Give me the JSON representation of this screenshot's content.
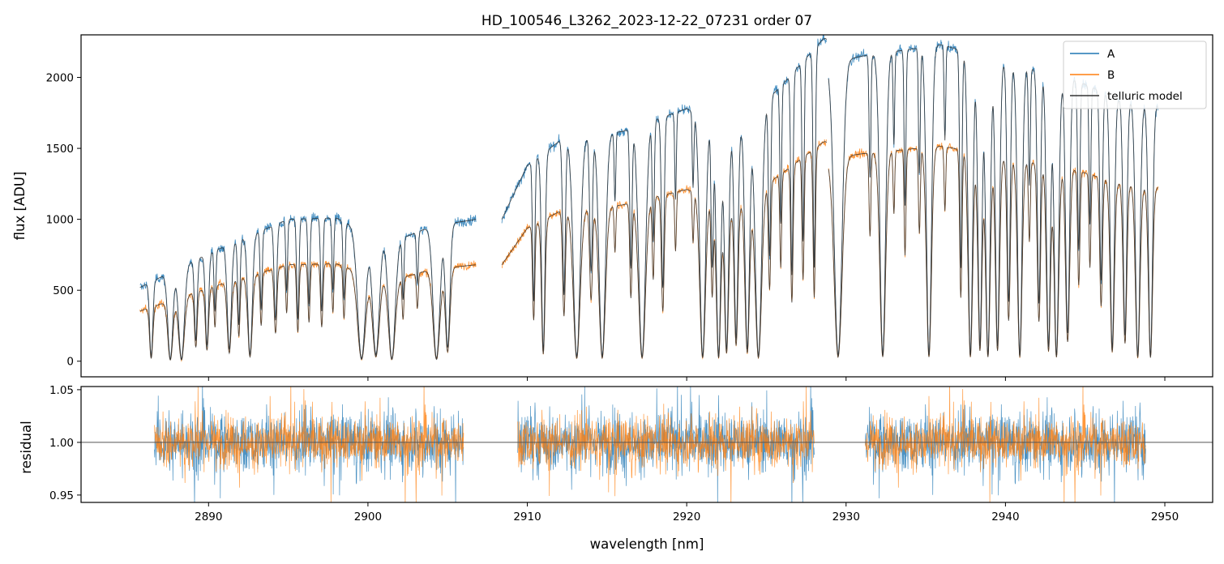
{
  "chart_data": [
    {
      "id": "spectrum",
      "type": "line",
      "title": "HD_100546_L3262_2023-12-22_07231  order 07",
      "xlabel": "",
      "ylabel": "flux [ADU]",
      "xlim": [
        2882,
        2953
      ],
      "ylim": [
        -110,
        2300
      ],
      "yticks": [
        0,
        500,
        1000,
        1500,
        2000
      ],
      "grid": false,
      "legend": "top-right",
      "segments": [
        [
          2885.7,
          2906.8
        ],
        [
          2908.4,
          2928.8
        ],
        [
          2928.9,
          2949.6
        ]
      ],
      "series": [
        {
          "name": "A",
          "color": "#1f77b4",
          "role": "data",
          "scale": 1.0
        },
        {
          "name": "B",
          "color": "#ff7f0e",
          "role": "data",
          "scale": 0.68
        },
        {
          "name": "telluric model",
          "color": "#333333",
          "role": "model"
        }
      ],
      "continuum_A": [
        [
          2885.7,
          520
        ],
        [
          2890,
          760
        ],
        [
          2895,
          1000
        ],
        [
          2898,
          1010
        ],
        [
          2900,
          900
        ],
        [
          2902,
          860
        ],
        [
          2904,
          950
        ],
        [
          2906.8,
          1000
        ],
        [
          2908.4,
          1000
        ],
        [
          2910,
          1380
        ],
        [
          2912,
          1550
        ],
        [
          2916,
          1620
        ],
        [
          2920,
          1780
        ],
        [
          2923,
          1600
        ],
        [
          2926,
          1950
        ],
        [
          2928.8,
          2300
        ],
        [
          2928.9,
          2100
        ],
        [
          2931,
          2150
        ],
        [
          2936,
          2230
        ],
        [
          2940,
          2100
        ],
        [
          2944,
          2000
        ],
        [
          2947,
          1850
        ],
        [
          2949.6,
          1800
        ]
      ],
      "absorption_lines": [
        [
          2886.4,
          0.95,
          0.14
        ],
        [
          2887.6,
          0.98,
          0.22
        ],
        [
          2888.3,
          0.98,
          0.25
        ],
        [
          2889.2,
          0.8,
          0.12
        ],
        [
          2889.9,
          0.85,
          0.14
        ],
        [
          2890.4,
          0.55,
          0.08
        ],
        [
          2891.3,
          0.9,
          0.18
        ],
        [
          2891.9,
          0.7,
          0.1
        ],
        [
          2892.6,
          0.95,
          0.2
        ],
        [
          2893.3,
          0.6,
          0.09
        ],
        [
          2894.2,
          0.7,
          0.12
        ],
        [
          2894.9,
          0.5,
          0.08
        ],
        [
          2895.6,
          0.7,
          0.1
        ],
        [
          2896.3,
          0.6,
          0.09
        ],
        [
          2897.1,
          0.65,
          0.1
        ],
        [
          2897.8,
          0.5,
          0.08
        ],
        [
          2898.5,
          0.55,
          0.09
        ],
        [
          2899.6,
          0.98,
          0.35
        ],
        [
          2900.5,
          0.95,
          0.3
        ],
        [
          2901.5,
          0.98,
          0.3
        ],
        [
          2902.2,
          0.5,
          0.08
        ],
        [
          2903.1,
          0.4,
          0.08
        ],
        [
          2904.3,
          0.98,
          0.3
        ],
        [
          2905.0,
          0.9,
          0.2
        ],
        [
          2910.4,
          0.7,
          0.1
        ],
        [
          2911.0,
          0.95,
          0.15
        ],
        [
          2912.3,
          0.7,
          0.12
        ],
        [
          2913.1,
          0.98,
          0.3
        ],
        [
          2914.0,
          0.6,
          0.12
        ],
        [
          2914.7,
          0.98,
          0.28
        ],
        [
          2915.5,
          0.3,
          0.07
        ],
        [
          2916.5,
          0.6,
          0.1
        ],
        [
          2917.2,
          0.98,
          0.3
        ],
        [
          2917.9,
          0.5,
          0.09
        ],
        [
          2918.5,
          0.7,
          0.12
        ],
        [
          2919.3,
          0.35,
          0.07
        ],
        [
          2920.4,
          0.3,
          0.07
        ],
        [
          2921.0,
          0.98,
          0.25
        ],
        [
          2921.6,
          0.6,
          0.1
        ],
        [
          2922.0,
          0.98,
          0.2
        ],
        [
          2922.5,
          0.95,
          0.18
        ],
        [
          2923.1,
          0.9,
          0.16
        ],
        [
          2923.8,
          0.95,
          0.2
        ],
        [
          2924.5,
          0.98,
          0.28
        ],
        [
          2925.2,
          0.6,
          0.1
        ],
        [
          2925.9,
          0.5,
          0.08
        ],
        [
          2926.6,
          0.7,
          0.1
        ],
        [
          2927.3,
          0.6,
          0.09
        ],
        [
          2928.0,
          0.7,
          0.1
        ],
        [
          2929.5,
          0.98,
          0.35
        ],
        [
          2931.5,
          0.4,
          0.08
        ],
        [
          2932.3,
          0.98,
          0.25
        ],
        [
          2933.0,
          0.3,
          0.07
        ],
        [
          2933.7,
          0.5,
          0.08
        ],
        [
          2934.6,
          0.4,
          0.08
        ],
        [
          2935.2,
          0.98,
          0.22
        ],
        [
          2936.2,
          0.3,
          0.07
        ],
        [
          2937.2,
          0.7,
          0.1
        ],
        [
          2937.8,
          0.98,
          0.2
        ],
        [
          2938.4,
          0.95,
          0.18
        ],
        [
          2938.9,
          0.98,
          0.2
        ],
        [
          2939.5,
          0.95,
          0.18
        ],
        [
          2940.2,
          0.8,
          0.14
        ],
        [
          2940.9,
          0.98,
          0.2
        ],
        [
          2941.5,
          0.4,
          0.08
        ],
        [
          2942.1,
          0.8,
          0.14
        ],
        [
          2942.7,
          0.95,
          0.18
        ],
        [
          2943.2,
          0.98,
          0.2
        ],
        [
          2943.9,
          0.9,
          0.18
        ],
        [
          2944.6,
          0.6,
          0.1
        ],
        [
          2945.3,
          0.5,
          0.08
        ],
        [
          2946.0,
          0.7,
          0.12
        ],
        [
          2946.7,
          0.95,
          0.18
        ],
        [
          2947.5,
          0.9,
          0.16
        ],
        [
          2948.3,
          0.98,
          0.2
        ],
        [
          2949.1,
          0.98,
          0.18
        ]
      ]
    },
    {
      "id": "residual",
      "type": "line",
      "xlabel": "wavelength [nm]",
      "ylabel": "residual",
      "xlim": [
        2882,
        2953
      ],
      "ylim": [
        0.943,
        1.053
      ],
      "xticks": [
        2890,
        2900,
        2910,
        2920,
        2930,
        2940,
        2950
      ],
      "yticks": [
        0.95,
        1.0,
        1.05
      ],
      "ytick_labels": [
        "0.95",
        "1.00",
        "1.05"
      ],
      "reference_line": 1.0,
      "grid": false,
      "segments": [
        [
          2886.6,
          2906.0
        ],
        [
          2909.4,
          2928.0
        ],
        [
          2931.2,
          2948.8
        ]
      ],
      "series": [
        {
          "name": "A",
          "color": "#1f77b4",
          "noise": 0.014
        },
        {
          "name": "B",
          "color": "#ff7f0e",
          "noise": 0.012
        }
      ]
    }
  ]
}
